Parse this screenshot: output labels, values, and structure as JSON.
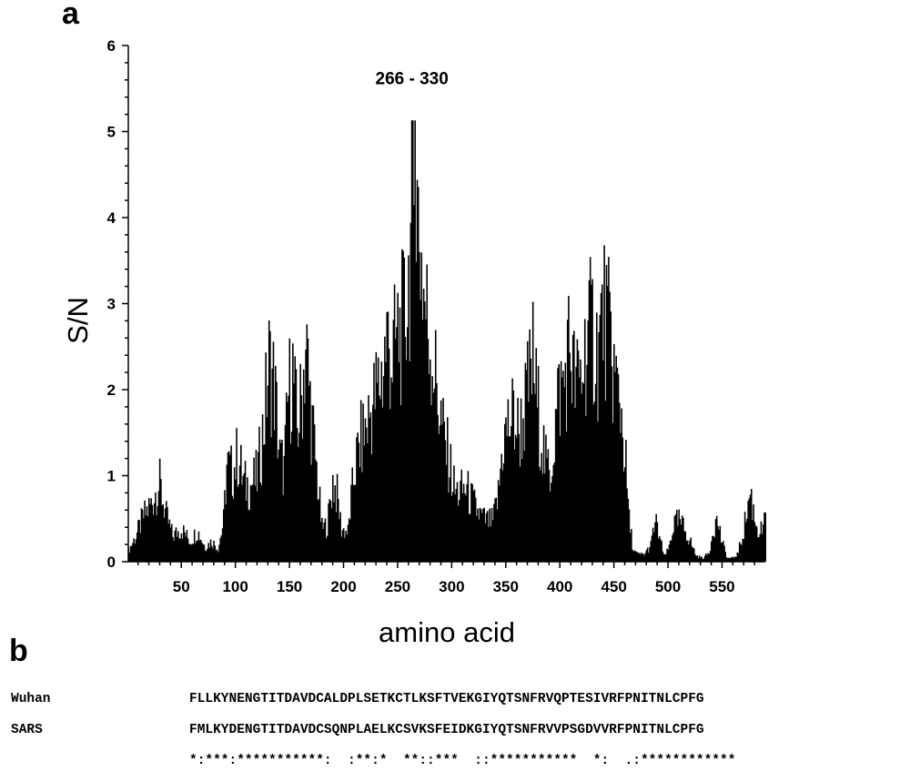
{
  "panels": {
    "a": "a",
    "b": "b"
  },
  "chart_data": {
    "type": "bar",
    "xlabel": "amino acid",
    "ylabel": "S/N",
    "xlim": [
      1,
      590
    ],
    "ylim": [
      0,
      6
    ],
    "xticks": [
      50,
      100,
      150,
      200,
      250,
      300,
      350,
      400,
      450,
      500,
      550
    ],
    "yticks": [
      0,
      1,
      2,
      3,
      4,
      5,
      6
    ],
    "grid": false,
    "bar_color": "#000000",
    "annotation": {
      "text": "266 - 330",
      "x": 270,
      "y": 5.55
    },
    "envelope": [
      [
        1,
        0.15
      ],
      [
        8,
        0.35
      ],
      [
        15,
        0.62
      ],
      [
        22,
        0.78
      ],
      [
        26,
        0.95
      ],
      [
        30,
        1.05
      ],
      [
        36,
        0.62
      ],
      [
        42,
        0.35
      ],
      [
        50,
        0.45
      ],
      [
        58,
        0.28
      ],
      [
        65,
        0.42
      ],
      [
        72,
        0.2
      ],
      [
        78,
        0.28
      ],
      [
        84,
        0.18
      ],
      [
        89,
        0.55
      ],
      [
        92,
        1.3
      ],
      [
        97,
        1.2
      ],
      [
        102,
        1.45
      ],
      [
        108,
        1.05
      ],
      [
        114,
        1.05
      ],
      [
        120,
        1.15
      ],
      [
        126,
        1.85
      ],
      [
        131,
        2.7
      ],
      [
        136,
        2.4
      ],
      [
        141,
        1.4
      ],
      [
        145,
        1.25
      ],
      [
        149,
        2.3
      ],
      [
        153,
        2.6
      ],
      [
        157,
        1.8
      ],
      [
        161,
        2.2
      ],
      [
        165,
        3.0
      ],
      [
        170,
        2.0
      ],
      [
        175,
        1.25
      ],
      [
        180,
        0.45
      ],
      [
        185,
        0.5
      ],
      [
        190,
        1.1
      ],
      [
        194,
        0.9
      ],
      [
        198,
        0.45
      ],
      [
        204,
        0.4
      ],
      [
        210,
        1.25
      ],
      [
        215,
        1.6
      ],
      [
        220,
        1.8
      ],
      [
        226,
        2.1
      ],
      [
        232,
        2.4
      ],
      [
        236,
        2.6
      ],
      [
        240,
        3.05
      ],
      [
        245,
        2.75
      ],
      [
        250,
        3.1
      ],
      [
        255,
        3.2
      ],
      [
        259,
        3.65
      ],
      [
        263,
        4.55
      ],
      [
        266,
        5.1
      ],
      [
        270,
        4.55
      ],
      [
        274,
        3.7
      ],
      [
        278,
        3.2
      ],
      [
        283,
        2.75
      ],
      [
        288,
        2.15
      ],
      [
        293,
        1.65
      ],
      [
        298,
        1.35
      ],
      [
        303,
        0.95
      ],
      [
        308,
        0.95
      ],
      [
        313,
        1.0
      ],
      [
        318,
        0.85
      ],
      [
        323,
        0.7
      ],
      [
        328,
        0.6
      ],
      [
        333,
        0.55
      ],
      [
        338,
        0.55
      ],
      [
        343,
        0.9
      ],
      [
        347,
        1.6
      ],
      [
        352,
        1.85
      ],
      [
        357,
        2.0
      ],
      [
        362,
        1.75
      ],
      [
        366,
        1.95
      ],
      [
        370,
        2.3
      ],
      [
        375,
        2.75
      ],
      [
        379,
        2.15
      ],
      [
        383,
        1.75
      ],
      [
        387,
        1.3
      ],
      [
        391,
        1.2
      ],
      [
        395,
        1.75
      ],
      [
        399,
        2.3
      ],
      [
        404,
        2.45
      ],
      [
        409,
        3.0
      ],
      [
        413,
        2.5
      ],
      [
        416,
        2.4
      ],
      [
        420,
        2.55
      ],
      [
        425,
        3.05
      ],
      [
        430,
        3.15
      ],
      [
        435,
        2.85
      ],
      [
        440,
        3.4
      ],
      [
        444,
        3.2
      ],
      [
        448,
        2.8
      ],
      [
        452,
        2.4
      ],
      [
        456,
        2.15
      ],
      [
        460,
        1.5
      ],
      [
        464,
        0.55
      ],
      [
        468,
        0.15
      ],
      [
        472,
        0.1
      ],
      [
        478,
        0.1
      ],
      [
        484,
        0.22
      ],
      [
        488,
        0.55
      ],
      [
        492,
        0.35
      ],
      [
        496,
        0.08
      ],
      [
        500,
        0.15
      ],
      [
        505,
        0.5
      ],
      [
        510,
        0.55
      ],
      [
        515,
        0.45
      ],
      [
        520,
        0.3
      ],
      [
        526,
        0.08
      ],
      [
        532,
        0.05
      ],
      [
        538,
        0.12
      ],
      [
        542,
        0.5
      ],
      [
        546,
        0.55
      ],
      [
        550,
        0.25
      ],
      [
        555,
        0.05
      ],
      [
        560,
        0.05
      ],
      [
        564,
        0.1
      ],
      [
        568,
        0.3
      ],
      [
        572,
        0.6
      ],
      [
        576,
        0.95
      ],
      [
        580,
        0.6
      ],
      [
        584,
        0.4
      ],
      [
        588,
        0.45
      ],
      [
        590,
        0.55
      ]
    ]
  },
  "alignment": {
    "rows": [
      {
        "name": "Wuhan",
        "sequence": "FLLKYNENGTITDAVDCALDPLSETKCTLKSFTVEKGIYQTSNFRVQPTESIVRFPNITNLCPFG"
      },
      {
        "name": "SARS",
        "sequence": "FMLKYDENGTITDAVDCSQNPLAELKCSVKSFEIDKGIYQTSNFRVVPSGDVVRFPNITNLCPFG"
      },
      {
        "name": "",
        "sequence": "*:***:***********:  :**:*  **::***  ::***********  *:  .:************"
      }
    ]
  }
}
